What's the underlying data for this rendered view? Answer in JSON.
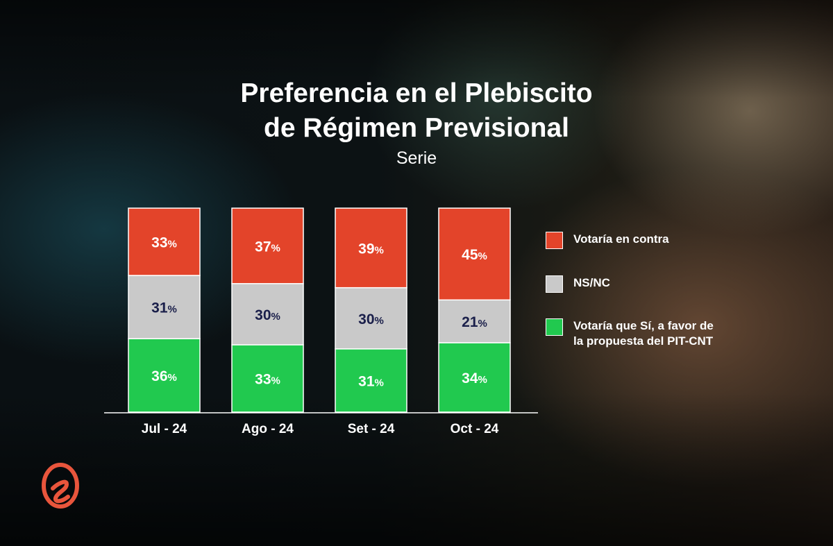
{
  "chart_data": {
    "type": "bar",
    "stacked": true,
    "title": "Preferencia en el Plebiscito de Régimen Previsional",
    "title_lines": [
      "Preferencia en el Plebiscito",
      "de Régimen Previsional"
    ],
    "subtitle": "Serie",
    "categories": [
      "Jul - 24",
      "Ago - 24",
      "Set - 24",
      "Oct - 24"
    ],
    "series": [
      {
        "name": "Votaría que Sí, a favor de la propuesta del PIT-CNT",
        "color": "#21c94f",
        "label_color": "#ffffff",
        "values": [
          36,
          33,
          31,
          34
        ]
      },
      {
        "name": "NS/NC",
        "color": "#c9c9c9",
        "label_color": "#1a1f4a",
        "values": [
          31,
          30,
          30,
          21
        ]
      },
      {
        "name": "Votaría en contra",
        "color": "#e3442a",
        "label_color": "#ffffff",
        "values": [
          33,
          37,
          39,
          45
        ]
      }
    ],
    "value_suffix": "%",
    "ylim": [
      0,
      100
    ],
    "grid": false,
    "legend": {
      "placement": "right",
      "entries": [
        {
          "label": "Votaría en contra",
          "color": "#e3442a"
        },
        {
          "label": "NS/NC",
          "color": "#c9c9c9"
        },
        {
          "label": "Votaría que Sí, a favor de\nla propuesta del PIT-CNT",
          "color": "#21c94f"
        }
      ]
    }
  },
  "logo": {
    "icon": "e-letter-logo-icon",
    "color": "#e8553c"
  }
}
